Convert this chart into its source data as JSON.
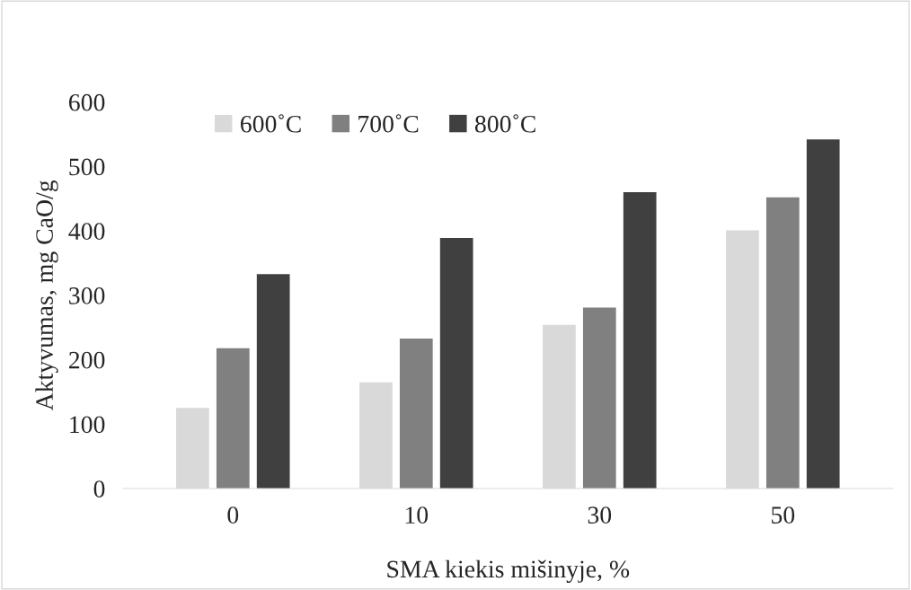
{
  "chart_data": {
    "type": "bar",
    "xlabel": "SMA kiekis mišinyje, %",
    "ylabel": "Aktyvumas, mg CaO/g",
    "categories": [
      "0",
      "10",
      "30",
      "50"
    ],
    "series": [
      {
        "name": "600˚C",
        "color": "#d9d9d9",
        "values": [
          125,
          165,
          254,
          401
        ]
      },
      {
        "name": "700˚C",
        "color": "#808080",
        "values": [
          218,
          233,
          281,
          452
        ]
      },
      {
        "name": "800˚C",
        "color": "#404040",
        "values": [
          333,
          389,
          460,
          542
        ]
      }
    ],
    "ylim": [
      0,
      600
    ],
    "yticks": [
      0,
      100,
      200,
      300,
      400,
      500,
      600
    ],
    "grid": false,
    "legend": "top left"
  }
}
